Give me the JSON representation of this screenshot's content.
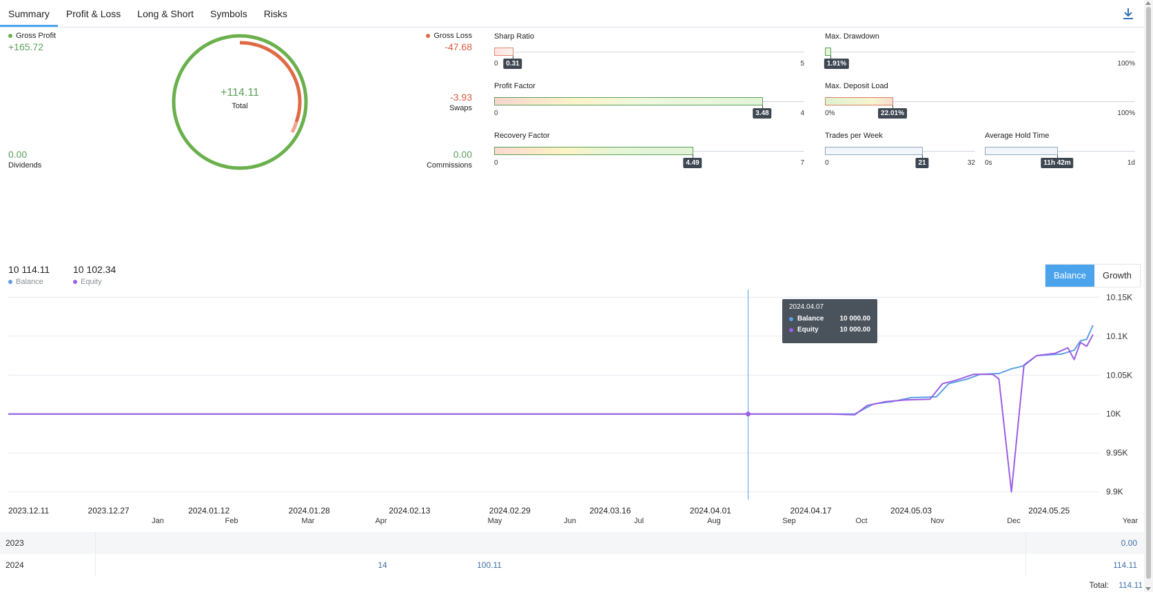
{
  "tabs": [
    "Summary",
    "Profit & Loss",
    "Long & Short",
    "Symbols",
    "Risks"
  ],
  "summary": {
    "gross_profit_label": "Gross Profit",
    "gross_profit": "+165.72",
    "gross_loss_label": "Gross Loss",
    "gross_loss": "-47.68",
    "total": "+114.11",
    "total_label": "Total",
    "swaps": "-3.93",
    "swaps_label": "Swaps",
    "dividends": "0.00",
    "dividends_label": "Dividends",
    "commissions": "0.00",
    "commissions_label": "Commissions"
  },
  "gauges": {
    "sharp_ratio": {
      "title": "Sharp Ratio",
      "value": "0.31",
      "min": "0",
      "max": "5"
    },
    "max_drawdown": {
      "title": "Max. Drawdown",
      "value": "1.91%",
      "min": "",
      "max": "100%"
    },
    "profit_factor": {
      "title": "Profit Factor",
      "value": "3.48",
      "min": "0",
      "max": "4"
    },
    "max_deposit_load": {
      "title": "Max. Deposit Load",
      "value": "22.01%",
      "min": "0%",
      "max": "100%"
    },
    "recovery_factor": {
      "title": "Recovery Factor",
      "value": "4.49",
      "min": "0",
      "max": "7"
    },
    "trades_per_week": {
      "title": "Trades per Week",
      "value": "21",
      "min": "0",
      "max": "32"
    },
    "avg_hold_time": {
      "title": "Average Hold Time",
      "value": "11h 42m",
      "min": "0s",
      "max": "1d"
    }
  },
  "chart_header": {
    "balance": "10 114.11",
    "balance_label": "Balance",
    "equity": "10 102.34",
    "equity_label": "Equity",
    "toggle_balance": "Balance",
    "toggle_growth": "Growth"
  },
  "tooltip": {
    "date": "2024.04.07",
    "balance_label": "Balance",
    "balance": "10 000.00",
    "equity_label": "Equity",
    "equity": "10 000.00"
  },
  "colors": {
    "balance": "#5b9ee6",
    "equity": "#9b5de5",
    "profit": "#6ab04c",
    "loss": "#e06a45"
  },
  "chart_data": {
    "type": "line",
    "x_ticks": [
      "2023.12.11",
      "2023.12.27",
      "2024.01.12",
      "2024.01.28",
      "2024.02.13",
      "2024.02.29",
      "2024.03.16",
      "2024.04.01",
      "2024.04.17",
      "2024.05.03",
      "2024.05.25"
    ],
    "y_ticks": [
      "10.15K",
      "10.1K",
      "10.05K",
      "10K",
      "9.95K",
      "9.9K"
    ],
    "ylim": [
      9890,
      10160
    ],
    "xlim": [
      "2023.12.11",
      "2024.06.02"
    ],
    "series": [
      {
        "name": "Balance",
        "points": [
          [
            "2023.12.11",
            10000
          ],
          [
            "2024.04.17",
            10000
          ],
          [
            "2024.04.24",
            10000
          ],
          [
            "2024.04.27",
            10013
          ],
          [
            "2024.04.30",
            10016
          ],
          [
            "2024.05.03",
            10021
          ],
          [
            "2024.05.07",
            10022
          ],
          [
            "2024.05.09",
            10039
          ],
          [
            "2024.05.12",
            10045
          ],
          [
            "2024.05.14",
            10051
          ],
          [
            "2024.05.17",
            10052
          ],
          [
            "2024.05.19",
            10058
          ],
          [
            "2024.05.21",
            10062
          ],
          [
            "2024.05.23",
            10075
          ],
          [
            "2024.05.27",
            10077
          ],
          [
            "2024.05.29",
            10082
          ],
          [
            "2024.05.30",
            10094
          ],
          [
            "2024.05.31",
            10096
          ],
          [
            "2024.06.01",
            10114
          ]
        ]
      },
      {
        "name": "Equity",
        "points": [
          [
            "2023.12.11",
            10000
          ],
          [
            "2024.04.20",
            10000
          ],
          [
            "2024.04.24",
            9999
          ],
          [
            "2024.04.26",
            10011
          ],
          [
            "2024.04.29",
            10016
          ],
          [
            "2024.05.02",
            10018
          ],
          [
            "2024.05.06",
            10019
          ],
          [
            "2024.05.08",
            10039
          ],
          [
            "2024.05.10",
            10043
          ],
          [
            "2024.05.13",
            10051
          ],
          [
            "2024.05.16",
            10051
          ],
          [
            "2024.05.17",
            10045
          ],
          [
            "2024.05.19",
            9900
          ],
          [
            "2024.05.21",
            10063
          ],
          [
            "2024.05.23",
            10075
          ],
          [
            "2024.05.26",
            10078
          ],
          [
            "2024.05.28",
            10085
          ],
          [
            "2024.05.29",
            10070
          ],
          [
            "2024.05.30",
            10092
          ],
          [
            "2024.05.31",
            10087
          ],
          [
            "2024.06.01",
            10102
          ]
        ]
      }
    ]
  },
  "months_table": {
    "months": [
      "Jan",
      "Feb",
      "Mar",
      "Apr",
      "May",
      "Jun",
      "Jul",
      "Aug",
      "Sep",
      "Oct",
      "Nov",
      "Dec"
    ],
    "year_col": "Year",
    "rows": [
      {
        "year": "2023",
        "cells": [
          "",
          "",
          "",
          "",
          "",
          "",
          "",
          "",
          "",
          "",
          "",
          ""
        ],
        "total": "0.00"
      },
      {
        "year": "2024",
        "cells": [
          "",
          "",
          "",
          "14",
          "100.11",
          "",
          "",
          "",
          "",
          "",
          "",
          ""
        ],
        "total": "114.11"
      }
    ],
    "total_label": "Total:",
    "total": "114.11"
  }
}
